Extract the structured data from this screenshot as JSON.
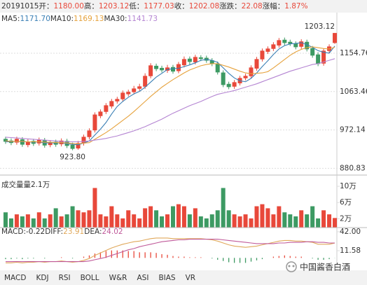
{
  "header": {
    "date": "20191015",
    "fields": [
      {
        "label": "开：",
        "value": "1180.00"
      },
      {
        "label": "高：",
        "value": "1203.12"
      },
      {
        "label": "低：",
        "value": "1177.03"
      },
      {
        "label": "收：",
        "value": "1202.08"
      },
      {
        "label": "涨跌：",
        "value": "22.08"
      },
      {
        "label": "涨幅：",
        "value": "1.87%"
      }
    ]
  },
  "chart_data": [
    {
      "type": "candlestick",
      "categories": [
        null,
        null,
        null,
        null,
        null,
        null,
        null,
        null,
        null,
        null,
        null,
        null,
        null,
        null,
        null,
        null,
        null,
        null,
        null,
        null,
        null,
        null,
        null,
        null,
        null,
        null,
        null,
        null,
        null,
        null,
        null,
        null,
        null,
        null,
        null,
        null,
        null,
        null,
        null,
        null,
        null,
        null,
        null,
        null,
        null,
        null,
        null,
        null,
        null,
        null,
        null,
        null,
        null,
        null,
        null,
        null,
        null,
        null,
        null,
        null
      ],
      "open": [
        950,
        946,
        943,
        949,
        937,
        945,
        941,
        947,
        937,
        943,
        939,
        945,
        936,
        929,
        941,
        956,
        972,
        1006,
        1016,
        1029,
        1041,
        1046,
        1058,
        1063,
        1071,
        1076,
        1101,
        1124,
        1119,
        1114,
        1121,
        1113,
        1127,
        1141,
        1134,
        1144,
        1143,
        1137,
        1129,
        1108,
        1081,
        1076,
        1084,
        1096,
        1101,
        1119,
        1141,
        1159,
        1166,
        1174,
        1186,
        1181,
        1177,
        1171,
        1181,
        1166,
        1151,
        1131,
        1161,
        1180
      ],
      "high": [
        956,
        952,
        956,
        955,
        950,
        951,
        954,
        953,
        948,
        949,
        952,
        951,
        942,
        946,
        961,
        976,
        1014,
        1021,
        1036,
        1046,
        1051,
        1066,
        1068,
        1077,
        1082,
        1107,
        1131,
        1130,
        1125,
        1127,
        1127,
        1134,
        1147,
        1147,
        1151,
        1150,
        1149,
        1143,
        1135,
        1114,
        1087,
        1091,
        1101,
        1106,
        1126,
        1146,
        1166,
        1171,
        1181,
        1191,
        1192,
        1187,
        1183,
        1188,
        1187,
        1172,
        1157,
        1166,
        1176,
        1203.12
      ],
      "low": [
        939,
        936,
        937,
        932,
        931,
        934,
        935,
        930,
        931,
        932,
        933,
        929,
        923.8,
        925,
        935,
        950,
        966,
        1000,
        1010,
        1023,
        1035,
        1040,
        1052,
        1057,
        1065,
        1070,
        1095,
        1112,
        1109,
        1108,
        1106,
        1107,
        1121,
        1128,
        1128,
        1136,
        1132,
        1124,
        1104,
        1074,
        1069,
        1070,
        1078,
        1090,
        1095,
        1113,
        1135,
        1153,
        1160,
        1168,
        1174,
        1172,
        1164,
        1165,
        1159,
        1144,
        1124,
        1125,
        1155,
        1177.03
      ],
      "close": [
        945,
        942,
        950,
        938,
        944,
        940,
        948,
        936,
        942,
        938,
        946,
        935,
        928,
        940,
        955,
        970,
        1008,
        1015,
        1030,
        1040,
        1045,
        1060,
        1062,
        1070,
        1075,
        1100,
        1125,
        1118,
        1115,
        1120,
        1112,
        1128,
        1140,
        1135,
        1145,
        1142,
        1138,
        1130,
        1110,
        1080,
        1075,
        1085,
        1095,
        1100,
        1120,
        1140,
        1160,
        1165,
        1175,
        1185,
        1180,
        1178,
        1170,
        1182,
        1165,
        1150,
        1130,
        1160,
        1170,
        1202.08
      ],
      "up_color": "#e8483a",
      "down_color": "#3d9a63",
      "lines": [
        {
          "name": "MA5:",
          "value_label": "1171.70",
          "color": "#3a7fb5",
          "values": [
            944,
            944,
            945,
            944,
            944,
            943,
            944,
            941,
            942,
            941,
            942,
            939,
            938,
            937,
            941,
            946,
            960,
            974,
            990,
            1010,
            1028,
            1040,
            1050,
            1058,
            1064,
            1074,
            1086,
            1098,
            1107,
            1116,
            1118,
            1119,
            1123,
            1127,
            1132,
            1138,
            1140,
            1138,
            1133,
            1120,
            1107,
            1096,
            1089,
            1087,
            1095,
            1108,
            1123,
            1137,
            1152,
            1165,
            1173,
            1177,
            1178,
            1180,
            1175,
            1169,
            1161,
            1157,
            1155,
            1171.7
          ]
        },
        {
          "name": "MA10:",
          "value_label": "1169.13",
          "color": "#e6a23c",
          "values": [
            946,
            945,
            945,
            945,
            944,
            944,
            944,
            943,
            943,
            942,
            942,
            941,
            940,
            939,
            941,
            942,
            950,
            958,
            966,
            975,
            985,
            995,
            1005,
            1016,
            1028,
            1040,
            1052,
            1063,
            1074,
            1083,
            1092,
            1100,
            1108,
            1115,
            1120,
            1125,
            1128,
            1130,
            1130,
            1126,
            1122,
            1117,
            1112,
            1108,
            1106,
            1107,
            1108,
            1111,
            1120,
            1130,
            1140,
            1150,
            1158,
            1164,
            1168,
            1170,
            1168,
            1166,
            1165,
            1169.13
          ]
        },
        {
          "name": "MA30:",
          "value_label": "1141.73",
          "color": "#b484d2",
          "values": [
            955,
            954,
            953,
            952,
            951,
            950,
            949,
            948,
            947,
            946,
            945,
            944,
            944,
            944,
            945,
            946,
            948,
            950,
            952,
            955,
            958,
            962,
            966,
            970,
            975,
            980,
            986,
            992,
            998,
            1005,
            1012,
            1018,
            1024,
            1030,
            1035,
            1040,
            1046,
            1052,
            1057,
            1060,
            1063,
            1066,
            1070,
            1074,
            1078,
            1082,
            1087,
            1092,
            1097,
            1102,
            1107,
            1112,
            1116,
            1120,
            1124,
            1128,
            1130,
            1134,
            1138,
            1141.73
          ]
        }
      ],
      "high_label": "1203.12",
      "low_label": "923.80",
      "ylim": [
        873.1,
        1248.1
      ],
      "yticks": [
        1154.76,
        1063.46,
        972.14,
        880.83
      ],
      "grid": true
    },
    {
      "type": "volume",
      "title": "成交量",
      "subtitle": "量2.1万",
      "values": [
        3.5,
        2,
        3,
        2.5,
        3,
        2,
        3.5,
        2,
        3,
        4.5,
        2.5,
        3,
        5,
        4,
        3.5,
        4,
        9.5,
        3,
        2.5,
        5,
        3,
        2,
        4,
        3,
        2,
        4.5,
        5,
        4,
        2.5,
        3,
        5,
        5.5,
        5,
        3,
        4.5,
        2.5,
        2,
        3,
        4,
        9.5,
        4,
        3,
        2.5,
        3,
        2,
        5,
        5.5,
        4.5,
        3,
        5,
        3.5,
        3,
        2.5,
        4,
        3,
        5,
        2,
        4,
        3,
        2.1
      ],
      "ylim": [
        0,
        10.7
      ],
      "yticks": [
        {
          "value": 10,
          "label": "10万"
        },
        {
          "value": 6,
          "label": "6万"
        },
        {
          "value": 2,
          "label": "2万"
        }
      ]
    },
    {
      "type": "macd",
      "title": "MACD:",
      "title_value": "-0.22",
      "values": [
        -2,
        -2,
        -1,
        -2,
        -1,
        -1,
        0,
        -1,
        0,
        0,
        1,
        0,
        -1,
        0,
        2,
        4,
        7,
        9,
        11,
        12,
        12,
        12,
        11,
        11,
        9,
        9,
        9,
        8,
        6,
        5,
        3,
        2,
        2,
        1,
        1,
        1,
        0,
        -1,
        -3,
        -5,
        -7,
        -8,
        -8,
        -8,
        -6,
        -4,
        -2,
        0,
        2,
        3,
        4,
        3,
        2,
        2,
        0,
        -1,
        -3,
        -3,
        -2,
        -0.22
      ],
      "series": [
        {
          "name": "DIFF:",
          "value_label": "23.91",
          "color": "#e0a85a",
          "values": [
            -8,
            -8,
            -7,
            -8,
            -7,
            -7,
            -6,
            -7,
            -6,
            -6,
            -5,
            -6,
            -7,
            -6,
            -4,
            -1,
            4,
            8,
            12,
            16,
            19,
            22,
            24,
            26,
            27,
            29,
            31,
            32,
            32,
            32,
            31,
            31,
            31,
            31,
            31,
            31,
            30,
            29,
            27,
            24,
            21,
            19,
            18,
            17,
            18,
            19,
            21,
            23,
            25,
            27,
            28,
            28,
            27,
            27,
            26,
            25,
            22,
            22,
            22,
            23.91
          ]
        },
        {
          "name": "DEA:",
          "value_label": "24.02",
          "color": "#c05a9a",
          "values": [
            -6,
            -6,
            -6,
            -6,
            -6,
            -6,
            -6,
            -6,
            -6,
            -6,
            -6,
            -6,
            -6,
            -6,
            -6,
            -5,
            -3,
            -1,
            1,
            4,
            7,
            10,
            13,
            15,
            18,
            20,
            22,
            24,
            26,
            27,
            28,
            29,
            29,
            30,
            30,
            30,
            30,
            30,
            30,
            29,
            28,
            27,
            26,
            25,
            24,
            23,
            23,
            23,
            23,
            24,
            24,
            25,
            25,
            25,
            26,
            26,
            25,
            25,
            24,
            24.02
          ]
        }
      ],
      "ylim": [
        -17.7,
        46.5
      ],
      "yticks": [
        {
          "value": 42,
          "label": "42.00"
        },
        11.58
      ]
    }
  ],
  "tabs": [
    "MACD",
    "KDJ",
    "RSI",
    "BOLL",
    "W&R",
    "ASI",
    "BIAS",
    "VR"
  ],
  "watermark": "中国酱香白酒"
}
